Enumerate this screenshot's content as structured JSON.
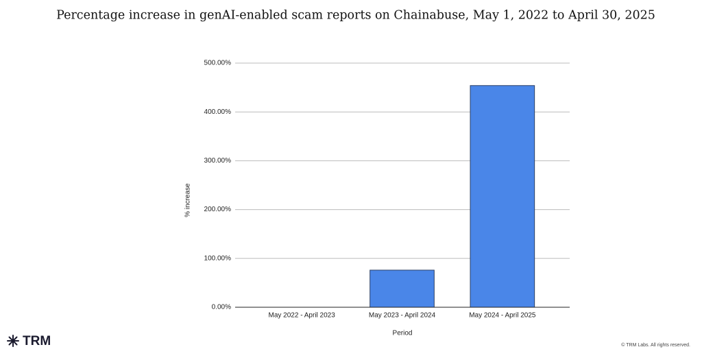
{
  "chart_data": {
    "type": "bar",
    "title": "Percentage increase in genAI-enabled scam reports on Chainabuse, May 1, 2022 to April 30, 2025",
    "x_label": "Period",
    "y_label": "% increase",
    "categories": [
      "May 2022 - April 2023",
      "May 2023 - April 2024",
      "May 2024 - April 2025"
    ],
    "values": [
      0,
      76,
      454
    ],
    "color": "#4a86e8",
    "ylim": [
      0,
      500
    ],
    "yticks": [
      {
        "value": 0,
        "label": "0.00%"
      },
      {
        "value": 100,
        "label": "100.00%"
      },
      {
        "value": 200,
        "label": "200.00%"
      },
      {
        "value": 300,
        "label": "300.00%"
      },
      {
        "value": 400,
        "label": "400.00%"
      },
      {
        "value": 500,
        "label": "500.00%"
      }
    ],
    "grid": true
  },
  "brand": "TRM",
  "copyright": "© TRM Labs. All rights reserved."
}
